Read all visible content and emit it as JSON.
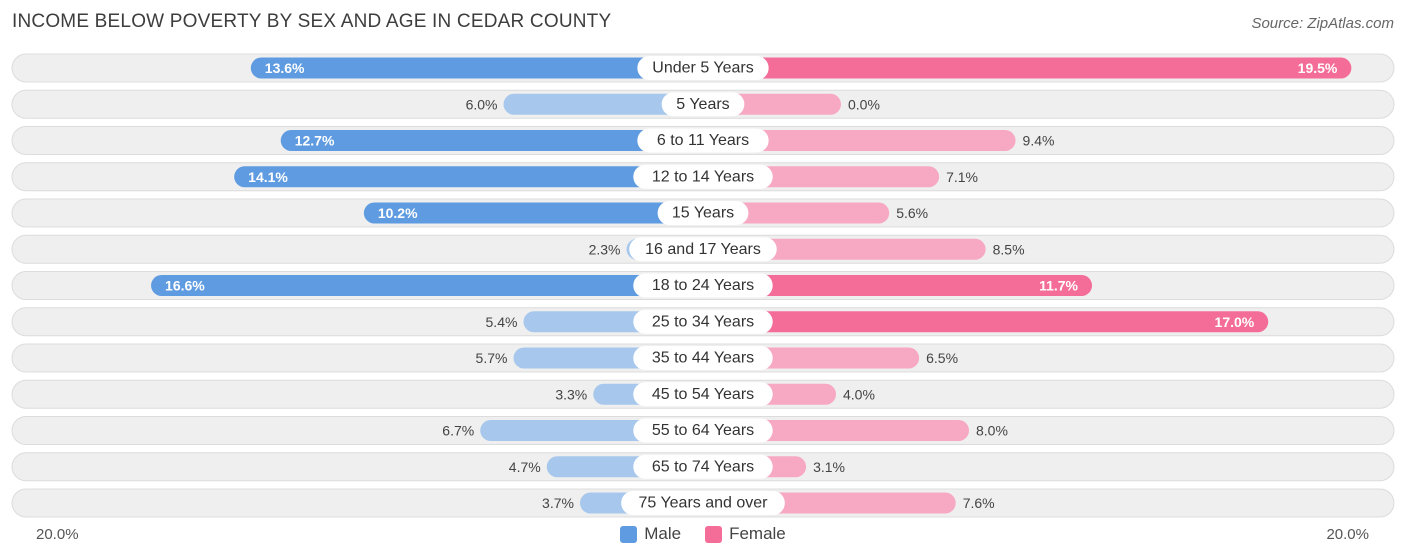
{
  "title": "INCOME BELOW POVERTY BY SEX AND AGE IN CEDAR COUNTY",
  "source": "Source: ZipAtlas.com",
  "axis": {
    "left_label": "20.0%",
    "right_label": "20.0%"
  },
  "legend": {
    "male": "Male",
    "female": "Female"
  },
  "colors": {
    "male_strong": "#5f9be0",
    "male_light": "#a7c8ec",
    "female_strong": "#f46d98",
    "female_light": "#f7a8c2",
    "row_bg": "#efefef",
    "row_border": "#dcdcdc"
  },
  "chart_data": {
    "type": "bar",
    "orientation": "horizontal-diverging",
    "title": "INCOME BELOW POVERTY BY SEX AND AGE IN CEDAR COUNTY",
    "categories": [
      "Under 5 Years",
      "5 Years",
      "6 to 11 Years",
      "12 to 14 Years",
      "15 Years",
      "16 and 17 Years",
      "18 to 24 Years",
      "25 to 34 Years",
      "35 to 44 Years",
      "45 to 54 Years",
      "55 to 64 Years",
      "65 to 74 Years",
      "75 Years and over"
    ],
    "series": [
      {
        "name": "Male",
        "values": [
          13.6,
          6.0,
          12.7,
          14.1,
          10.2,
          2.3,
          16.6,
          5.4,
          5.7,
          3.3,
          6.7,
          4.7,
          3.7
        ],
        "labels": [
          "13.6%",
          "6.0%",
          "12.7%",
          "14.1%",
          "10.2%",
          "2.3%",
          "16.6%",
          "5.4%",
          "5.7%",
          "3.3%",
          "6.7%",
          "4.7%",
          "3.7%"
        ]
      },
      {
        "name": "Female",
        "values": [
          19.5,
          0.0,
          9.4,
          7.1,
          5.6,
          8.5,
          11.7,
          17.0,
          6.5,
          4.0,
          8.0,
          3.1,
          7.6
        ],
        "labels": [
          "19.5%",
          "0.0%",
          "9.4%",
          "7.1%",
          "5.6%",
          "8.5%",
          "11.7%",
          "17.0%",
          "6.5%",
          "4.0%",
          "8.0%",
          "3.1%",
          "7.6%"
        ]
      }
    ],
    "xlim": [
      -20,
      20
    ],
    "xlabel": "",
    "ylabel": "",
    "legend_position": "bottom-center"
  }
}
